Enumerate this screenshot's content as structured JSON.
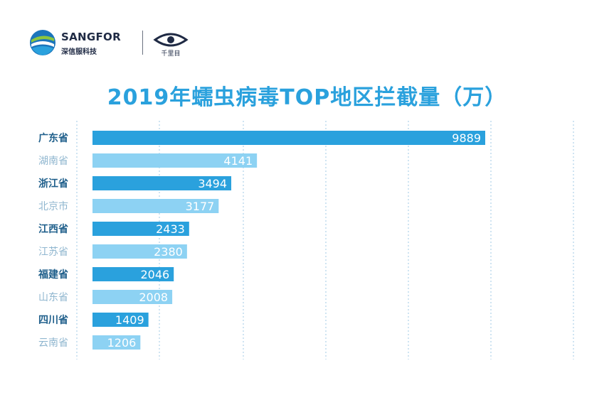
{
  "brand": {
    "company_name": "SANGFOR",
    "company_name_cn": "深信服科技",
    "partner_caption": "千里目"
  },
  "colors": {
    "title": "#2aa1dd",
    "bar_dark": "#2aa1dd",
    "bar_light": "#8dd2f3",
    "label_dark": "#1f5f8b",
    "label_light": "#8fb6cf",
    "grid": "#9fc9e6"
  },
  "chart_data": {
    "type": "bar",
    "orientation": "horizontal",
    "title": "2019年蠕虫病毒TOP地区拦截量（万）",
    "categories": [
      "广东省",
      "湖南省",
      "浙江省",
      "北京市",
      "江西省",
      "江苏省",
      "福建省",
      "山东省",
      "四川省",
      "云南省"
    ],
    "values": [
      9889,
      4141,
      3494,
      3177,
      2433,
      2380,
      2046,
      2008,
      1409,
      1206
    ],
    "bar_shades": [
      "dark",
      "light",
      "dark",
      "light",
      "dark",
      "light",
      "dark",
      "light",
      "dark",
      "light"
    ],
    "xlim": [
      0,
      12000
    ],
    "grid": "vertical-dotted",
    "data_labels": "inside-end"
  }
}
